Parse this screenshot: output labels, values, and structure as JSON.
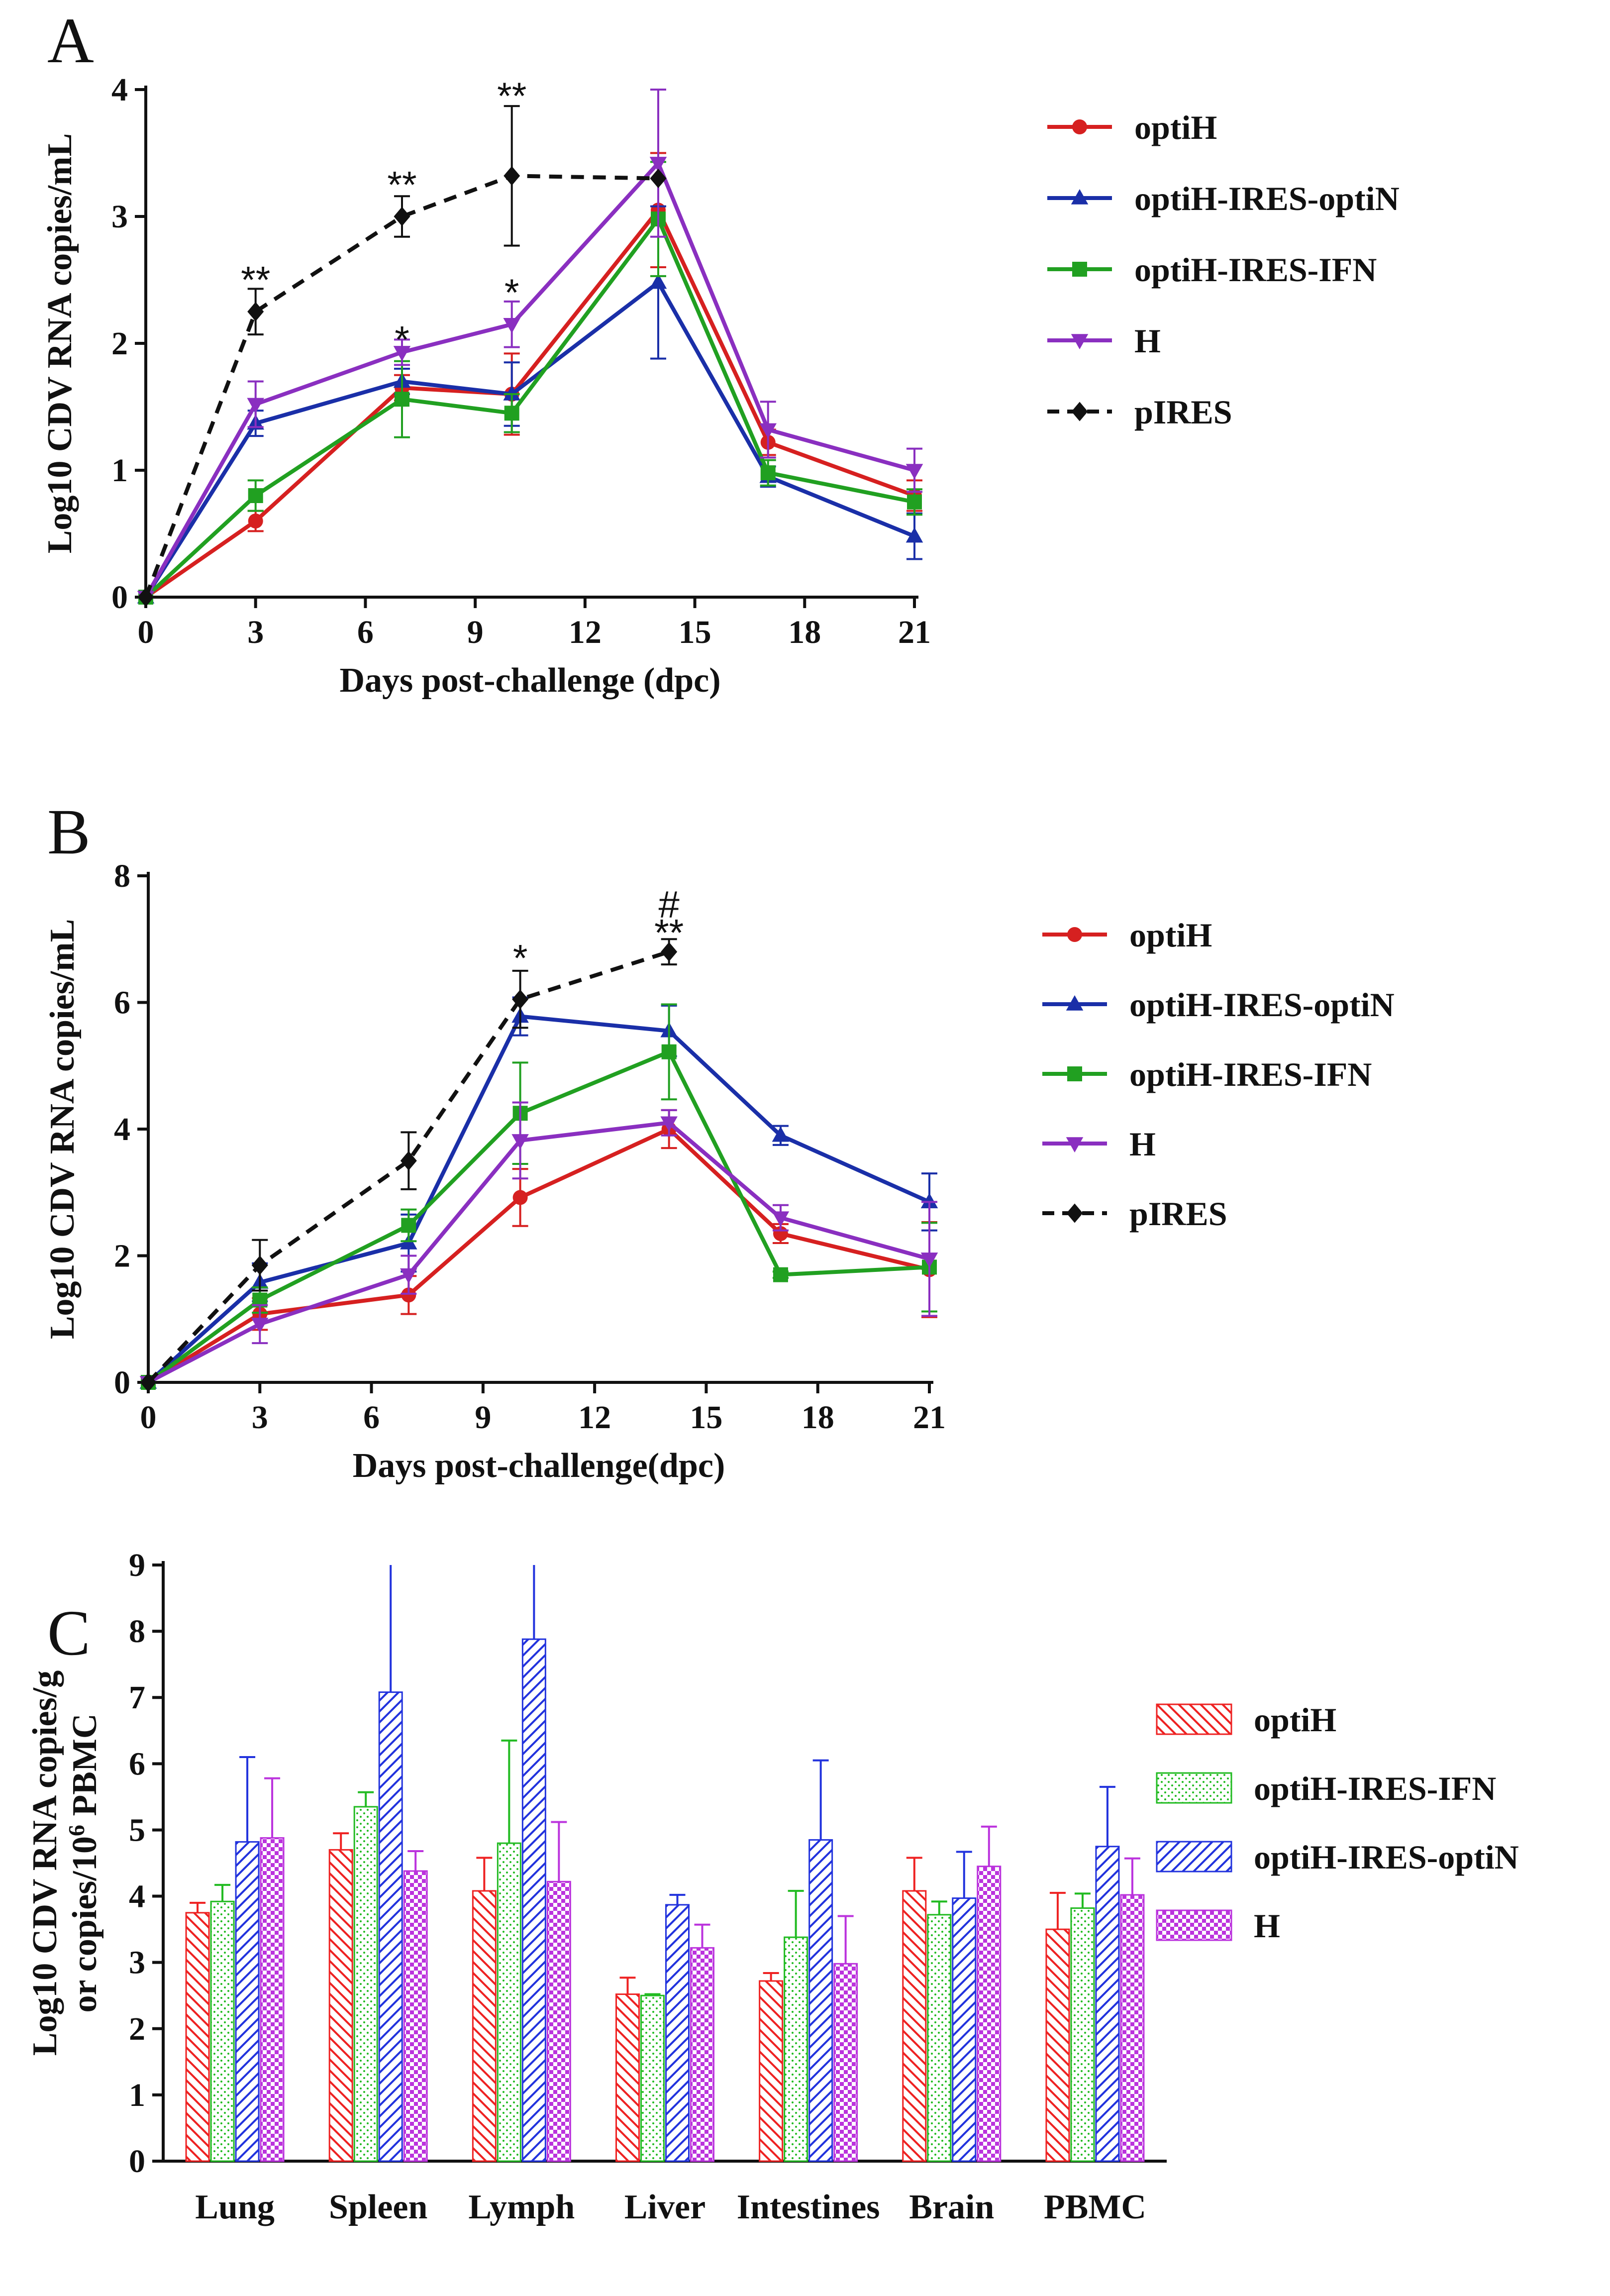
{
  "figure": {
    "panels": [
      "A",
      "B",
      "C"
    ]
  },
  "colors": {
    "optiH": "#d62020",
    "optiH-IRES-optiN": "#1a2fa8",
    "optiH-IRES-IFN": "#21a021",
    "H": "#8a2fc0",
    "pIRES": "#111111",
    "barRed": "#ee2222",
    "barGreen": "#22bb22",
    "barBlue": "#2233dd",
    "barPurple": "#bb33dd"
  },
  "chart_data": [
    {
      "panel": "A",
      "type": "line",
      "xlabel": "Days post-challenge (dpc)",
      "ylabel": "Log10 CDV RNA copies/mL",
      "xticks": [
        0,
        3,
        6,
        9,
        12,
        15,
        18,
        21
      ],
      "yticks": [
        0,
        1,
        2,
        3,
        4
      ],
      "xlim": [
        0,
        21
      ],
      "ylim": [
        0,
        4
      ],
      "x": [
        0,
        3,
        7,
        10,
        14,
        17,
        21
      ],
      "series": [
        {
          "name": "optiH",
          "marker": "circle",
          "dashed": false,
          "values": [
            0,
            0.6,
            1.65,
            1.6,
            3.05,
            1.22,
            0.8
          ],
          "err": [
            0,
            0.08,
            0.1,
            0.32,
            0.45,
            0.1,
            0.12
          ]
        },
        {
          "name": "optiH-IRES-optiN",
          "marker": "triangle-up",
          "dashed": false,
          "values": [
            0,
            1.37,
            1.7,
            1.6,
            2.48,
            0.95,
            0.48
          ],
          "err": [
            0,
            0.1,
            0.1,
            0.25,
            0.6,
            0.08,
            0.18
          ]
        },
        {
          "name": "optiH-IRES-IFN",
          "marker": "square",
          "dashed": false,
          "values": [
            0,
            0.8,
            1.56,
            1.45,
            2.98,
            0.98,
            0.75
          ],
          "err": [
            0,
            0.12,
            0.3,
            0.15,
            0.45,
            0.1,
            0.1
          ]
        },
        {
          "name": "H",
          "marker": "triangle-down",
          "dashed": false,
          "values": [
            0,
            1.52,
            1.93,
            2.15,
            3.42,
            1.32,
            1.0
          ],
          "err": [
            0,
            0.18,
            0.1,
            0.18,
            0.58,
            0.22,
            0.17
          ]
        },
        {
          "name": "pIRES",
          "marker": "diamond",
          "dashed": true,
          "x": [
            0,
            3,
            7,
            10,
            14
          ],
          "values": [
            0,
            2.25,
            3.0,
            3.32,
            3.3
          ],
          "err": [
            0,
            0.18,
            0.16,
            0.55,
            0
          ]
        }
      ],
      "annotations": [
        {
          "text": "**",
          "x": 3,
          "y": 2.5
        },
        {
          "text": "**",
          "x": 7,
          "y": 3.25
        },
        {
          "text": "**",
          "x": 10,
          "y": 3.95
        },
        {
          "text": "*",
          "x": 7,
          "y": 2.03
        },
        {
          "text": "*",
          "x": 10,
          "y": 2.4
        }
      ],
      "legend": [
        "optiH",
        "optiH-IRES-optiN",
        "optiH-IRES-IFN",
        "H",
        "pIRES"
      ]
    },
    {
      "panel": "B",
      "type": "line",
      "xlabel": "Days post-challenge(dpc)",
      "ylabel": "Log10 CDV RNA copies/mL",
      "xticks": [
        0,
        3,
        6,
        9,
        12,
        15,
        18,
        21
      ],
      "yticks": [
        0,
        2,
        4,
        6,
        8
      ],
      "xlim": [
        0,
        21
      ],
      "ylim": [
        0,
        8
      ],
      "x": [
        0,
        3,
        7,
        10,
        14,
        17,
        21
      ],
      "series": [
        {
          "name": "optiH",
          "marker": "circle",
          "dashed": false,
          "values": [
            0,
            1.08,
            1.38,
            2.92,
            4.0,
            2.35,
            1.78
          ],
          "err": [
            0,
            0.25,
            0.3,
            0.45,
            0.3,
            0.15,
            0.75
          ]
        },
        {
          "name": "optiH-IRES-optiN",
          "marker": "triangle-up",
          "dashed": false,
          "values": [
            0,
            1.58,
            2.2,
            5.78,
            5.55,
            3.9,
            2.85
          ],
          "err": [
            0,
            0.3,
            0.45,
            0.3,
            0.4,
            0.15,
            0.45
          ]
        },
        {
          "name": "optiH-IRES-IFN",
          "marker": "square",
          "dashed": false,
          "values": [
            0,
            1.3,
            2.48,
            4.25,
            5.22,
            1.7,
            1.82
          ],
          "err": [
            0,
            0.2,
            0.25,
            0.8,
            0.75,
            0.05,
            0.7
          ]
        },
        {
          "name": "H",
          "marker": "triangle-down",
          "dashed": false,
          "values": [
            0,
            0.92,
            1.7,
            3.82,
            4.1,
            2.6,
            1.95
          ],
          "err": [
            0,
            0.3,
            0.3,
            0.6,
            0.2,
            0.2,
            0.9
          ]
        },
        {
          "name": "pIRES",
          "marker": "diamond",
          "dashed": true,
          "x": [
            0,
            3,
            7,
            10,
            14
          ],
          "values": [
            0,
            1.85,
            3.5,
            6.05,
            6.8
          ],
          "err": [
            0,
            0.4,
            0.45,
            0.45,
            0.2
          ]
        }
      ],
      "annotations": [
        {
          "text": "*",
          "x": 10,
          "y": 6.7
        },
        {
          "text": "**",
          "x": 14,
          "y": 7.1
        },
        {
          "text": "#",
          "x": 14,
          "y": 7.55
        }
      ],
      "legend": [
        "optiH",
        "optiH-IRES-optiN",
        "optiH-IRES-IFN",
        "H",
        "pIRES"
      ]
    },
    {
      "panel": "C",
      "type": "bar",
      "ylabel_line1": "Log10 CDV RNA copies/g",
      "ylabel_line2_prefix": "or copies/10",
      "ylabel_line2_sup": "6",
      "ylabel_line2_suffix": " PBMC",
      "categories": [
        "Lung",
        "Spleen",
        "Lymph",
        "Liver",
        "Intestines",
        "Brain",
        "PBMC"
      ],
      "yticks": [
        0,
        1,
        2,
        3,
        4,
        5,
        6,
        7,
        8,
        9
      ],
      "ylim": [
        0,
        9
      ],
      "series": [
        {
          "name": "optiH",
          "pattern": "hatch-back",
          "values": [
            3.75,
            4.7,
            4.08,
            2.52,
            2.72,
            4.08,
            3.5
          ],
          "err": [
            0.15,
            0.25,
            0.5,
            0.25,
            0.12,
            0.5,
            0.55
          ]
        },
        {
          "name": "optiH-IRES-IFN",
          "pattern": "dots",
          "values": [
            3.92,
            5.35,
            4.8,
            2.5,
            3.38,
            3.72,
            3.82
          ],
          "err": [
            0.25,
            0.22,
            1.55,
            0.02,
            0.7,
            0.2,
            0.22
          ]
        },
        {
          "name": "optiH-IRES-optiN",
          "pattern": "hatch-fwd",
          "values": [
            4.82,
            7.08,
            7.88,
            3.87,
            4.85,
            3.97,
            4.75
          ],
          "err": [
            1.28,
            1.95,
            1.15,
            0.15,
            1.2,
            0.7,
            0.9
          ]
        },
        {
          "name": "H",
          "pattern": "checker",
          "values": [
            4.88,
            4.38,
            4.22,
            3.22,
            2.98,
            4.45,
            4.02
          ],
          "err": [
            0.9,
            0.3,
            0.9,
            0.35,
            0.72,
            0.6,
            0.55
          ]
        }
      ],
      "legend": [
        "optiH",
        "optiH-IRES-IFN",
        "optiH-IRES-optiN",
        "H"
      ]
    }
  ]
}
